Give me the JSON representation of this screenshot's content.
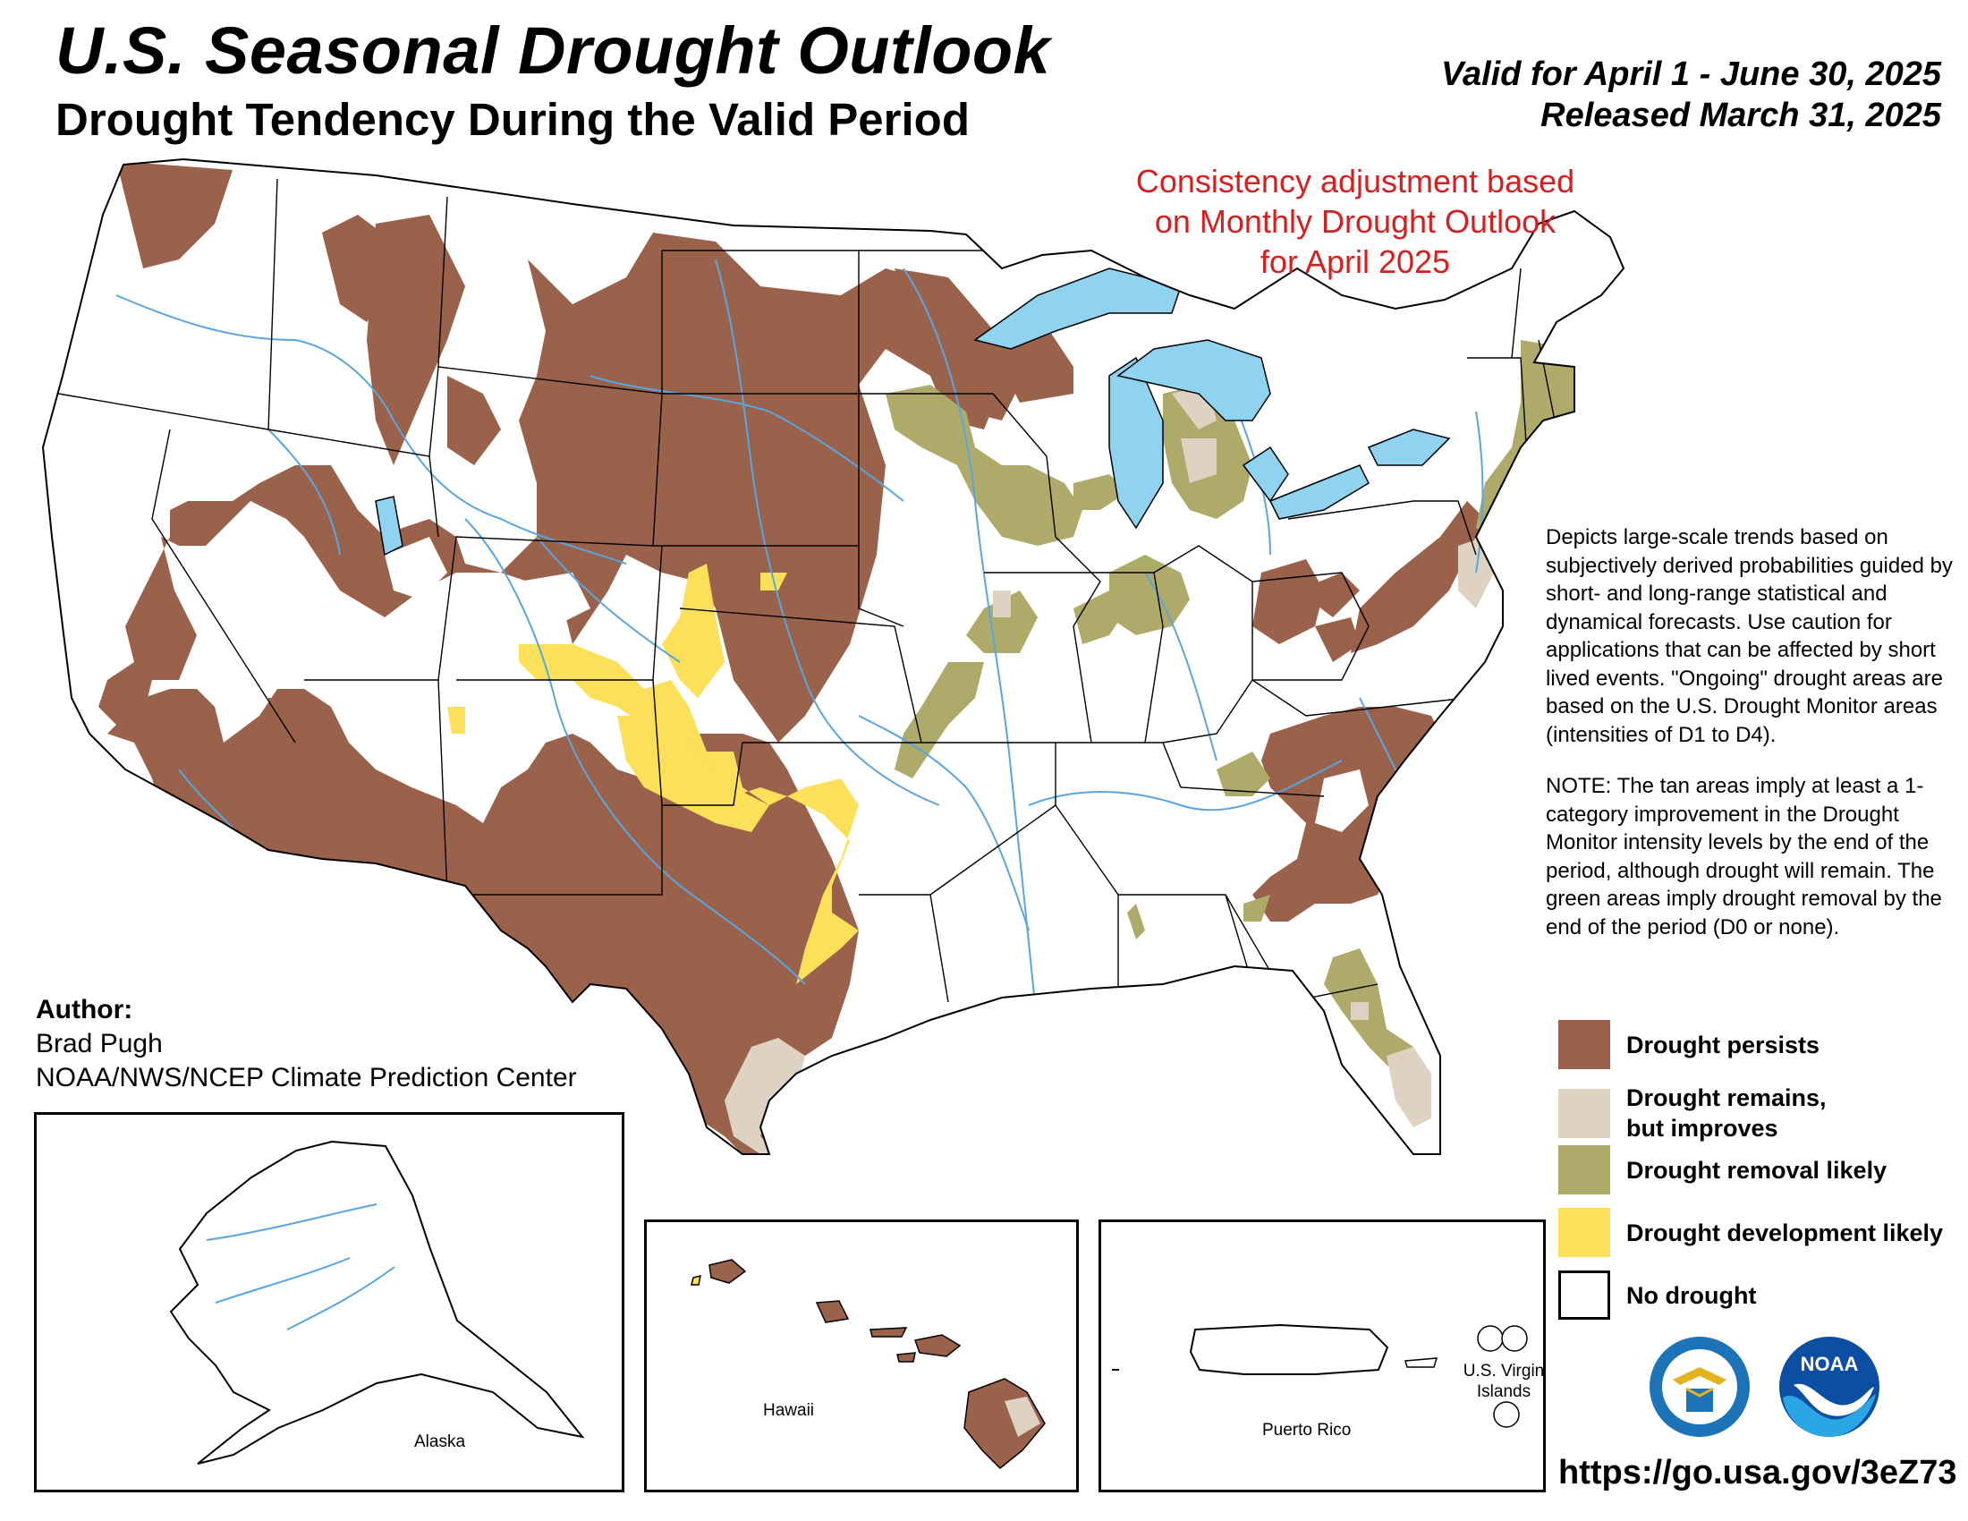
{
  "title": "U.S. Seasonal Drought Outlook",
  "subtitle": "Drought Tendency During the Valid Period",
  "valid_period": "Valid for April 1 - June 30, 2025",
  "released": "Released March 31, 2025",
  "consistency_note": "Consistency adjustment based on Monthly Drought Outlook for April 2025",
  "description": [
    "Depicts large-scale trends based on subjectively derived probabilities guided by short- and long-range statistical and dynamical forecasts. Use caution for applications that can be affected by short lived events. \"Ongoing\" drought areas are based on the U.S. Drought Monitor areas (intensities of D1 to D4).",
    "NOTE: The tan areas imply at least a 1-category improvement in the Drought Monitor intensity levels by the end of the period, although drought will remain. The green areas imply drought removal by the end of the period (D0 or none)."
  ],
  "legend": [
    {
      "label": "Drought persists",
      "color": "#9a624b"
    },
    {
      "label": "Drought remains, but improves",
      "color": "#ded3c2"
    },
    {
      "label": "Drought removal likely",
      "color": "#aeaa6a"
    },
    {
      "label": "Drought development likely",
      "color": "#fde05a"
    },
    {
      "label": "No drought",
      "color": "#ffffff"
    }
  ],
  "colors": {
    "persists": "#9a624b",
    "improves": "#ded3c2",
    "removal": "#aeaa6a",
    "development": "#fde05a",
    "water": "#8fd3f0",
    "rivers": "#5aa5e0",
    "note_red": "#d42020"
  },
  "author": {
    "heading": "Author:",
    "name": "Brad Pugh",
    "org": "NOAA/NWS/NCEP Climate Prediction Center"
  },
  "insets": {
    "alaska": "Alaska",
    "hawaii": "Hawaii",
    "puerto_rico": "Puerto Rico",
    "virgin_islands": "U.S. Virgin Islands"
  },
  "logos": {
    "doc": "DOC seal",
    "noaa": "NOAA"
  },
  "url": "https://go.usa.gov/3eZ73"
}
